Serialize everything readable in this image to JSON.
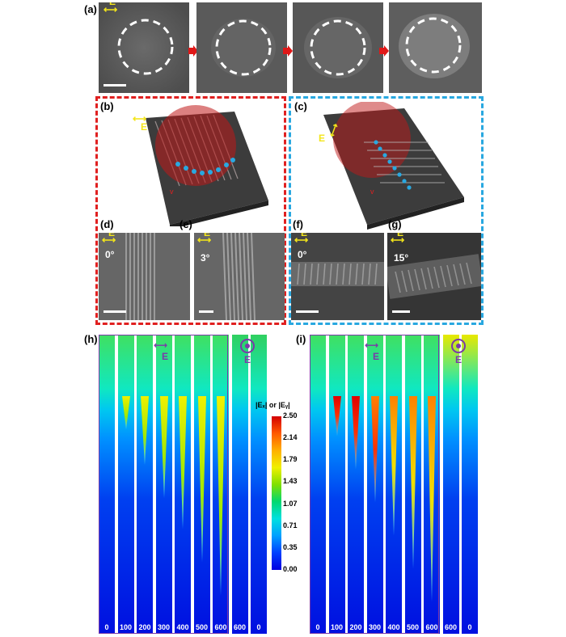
{
  "panels": {
    "a": "(a)",
    "b": "(b)",
    "c": "(c)",
    "d": "(d)",
    "e": "(e)",
    "f": "(f)",
    "g": "(g)",
    "h": "(h)",
    "i": "(i)"
  },
  "efield_label": "E",
  "angles": {
    "d": "0°",
    "e": "3°",
    "f": "0°",
    "g": "15°"
  },
  "colors": {
    "red_box": "#e02020",
    "blue_box": "#29a8e0",
    "arrow": "#e01818",
    "frame": "#7a3aa8"
  },
  "colorbar": {
    "title": "|Eₓ| or |Eᵧ|",
    "ticks": [
      "2.50",
      "2.14",
      "1.79",
      "1.43",
      "1.07",
      "0.71",
      "0.35",
      "0.00"
    ],
    "range": [
      0,
      2.5
    ]
  },
  "sim_h": {
    "labels": [
      "0",
      "100",
      "200",
      "300",
      "400",
      "500",
      "600",
      "600",
      "0"
    ],
    "depths": [
      0,
      0.15,
      0.31,
      0.46,
      0.6,
      0.75,
      0.9,
      0,
      0
    ]
  },
  "sim_i": {
    "labels": [
      "0",
      "100",
      "200",
      "300",
      "400",
      "500",
      "600",
      "600",
      "0"
    ],
    "depths": [
      0,
      0.18,
      0.33,
      0.48,
      0.63,
      0.78,
      0.93,
      0,
      0
    ]
  }
}
